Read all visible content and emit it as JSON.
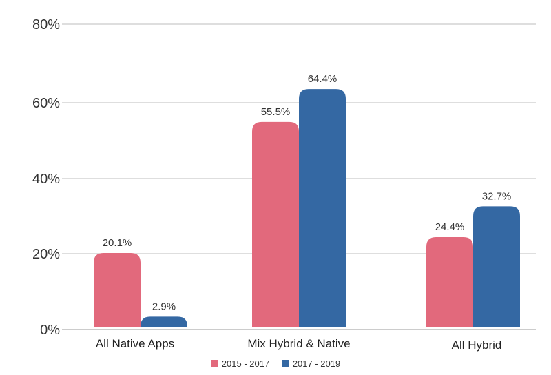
{
  "chart_data": {
    "type": "bar",
    "categories": [
      "All Native Apps",
      "Mix Hybrid & Native",
      "All Hybrid"
    ],
    "series": [
      {
        "name": "2015 - 2017",
        "color": "#e2697c",
        "values": [
          20.1,
          55.5,
          24.4
        ],
        "labels": [
          "20.1%",
          "55.5%",
          "24.4%"
        ]
      },
      {
        "name": "2017 - 2019",
        "color": "#3468a3",
        "values": [
          2.9,
          64.4,
          32.7
        ],
        "labels": [
          "2.9%",
          "64.4%",
          "32.7%"
        ]
      }
    ],
    "yticks": [
      "0%",
      "20%",
      "40%",
      "60%",
      "80%"
    ],
    "ylim": [
      0,
      80
    ],
    "grid": true,
    "legend_position": "bottom"
  }
}
